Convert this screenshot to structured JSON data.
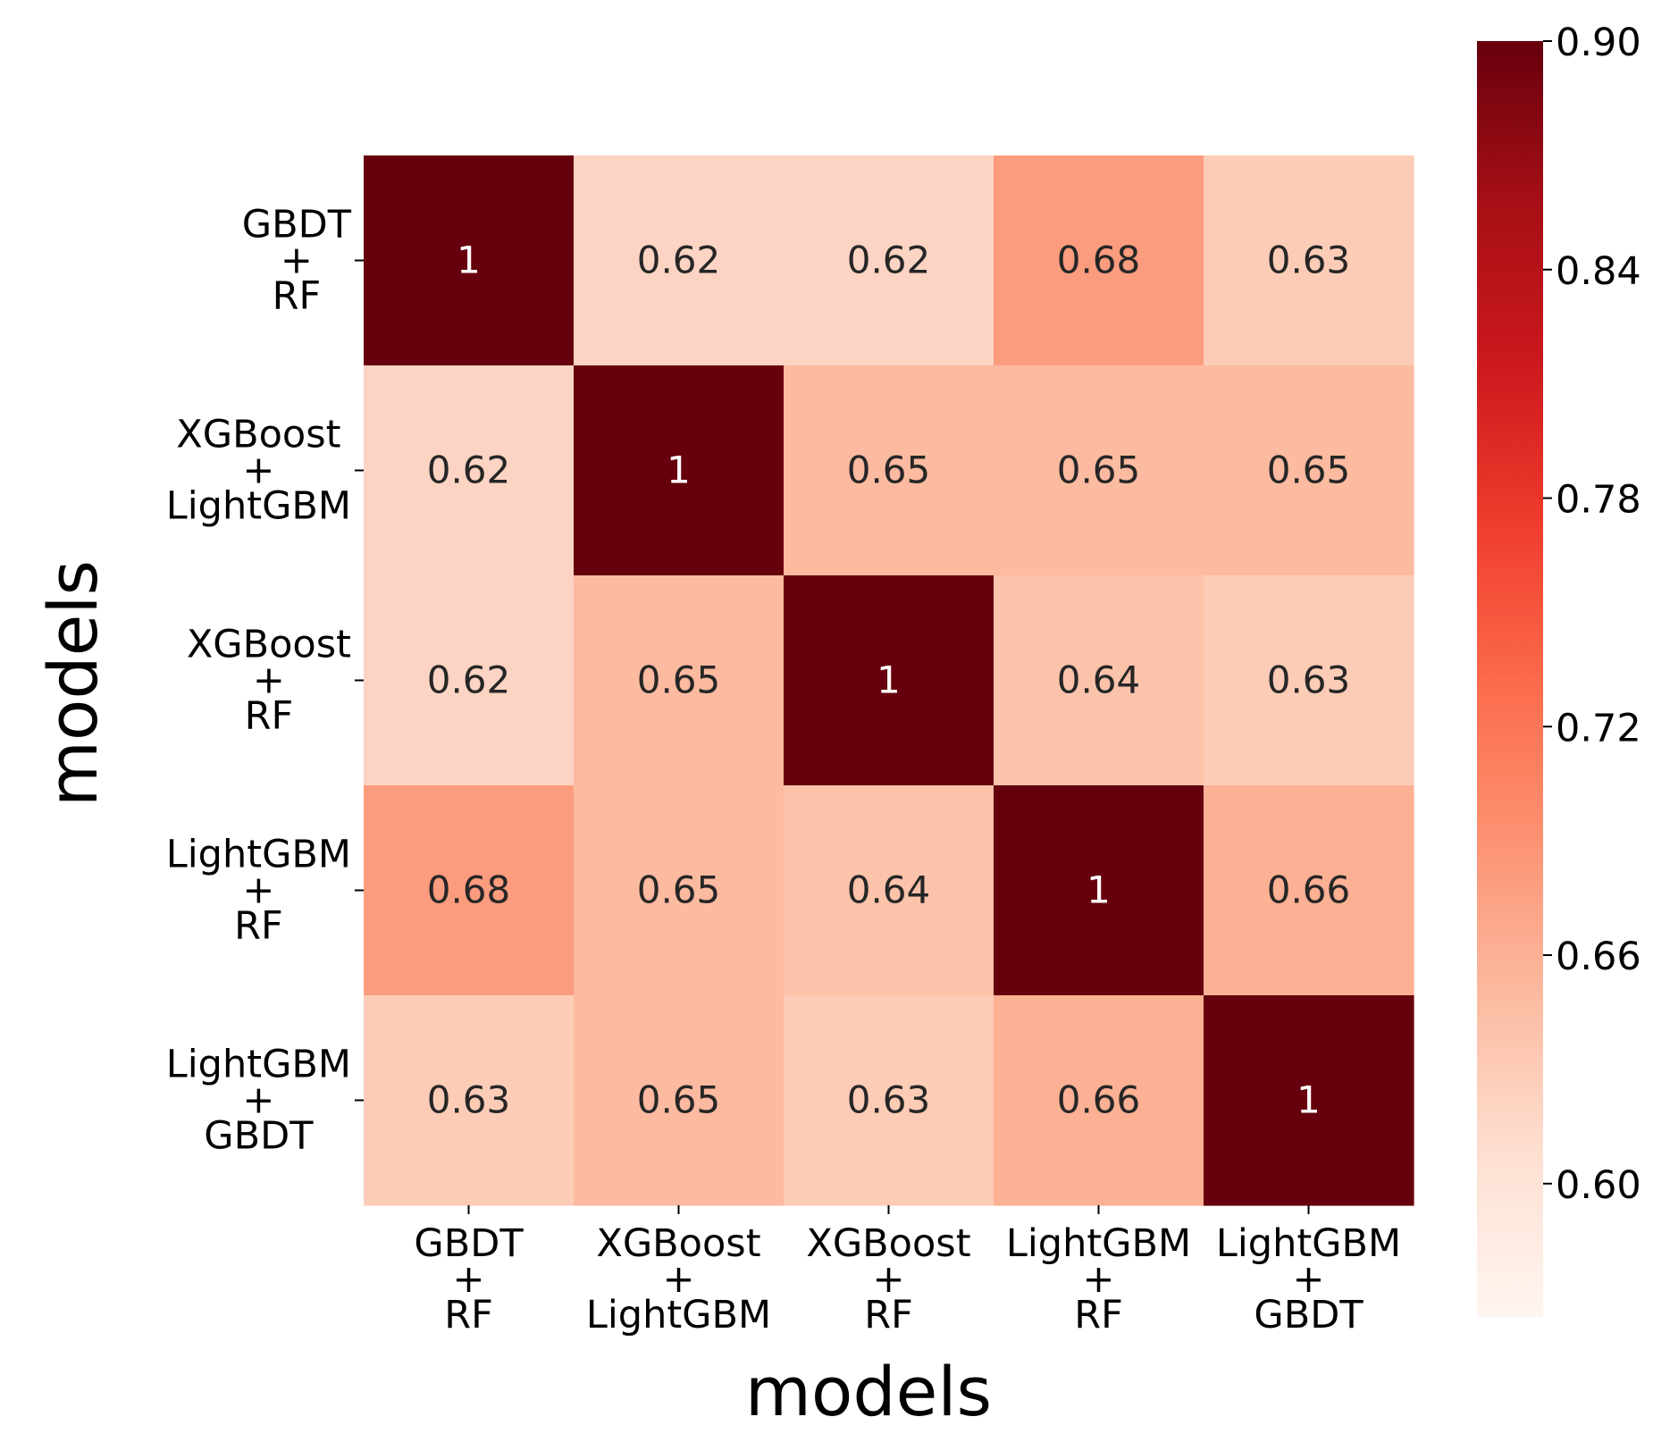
{
  "chart_data": {
    "type": "heatmap",
    "title": "",
    "xlabel": "models",
    "ylabel": "models",
    "categories": [
      [
        "GBDT",
        "+",
        "RF"
      ],
      [
        "XGBoost",
        "+",
        "LightGBM"
      ],
      [
        "XGBoost",
        "+",
        "RF"
      ],
      [
        "LightGBM",
        "+",
        "RF"
      ],
      [
        "LightGBM",
        "+",
        "GBDT"
      ]
    ],
    "values": [
      [
        1,
        0.62,
        0.62,
        0.68,
        0.63
      ],
      [
        0.62,
        1,
        0.65,
        0.65,
        0.65
      ],
      [
        0.62,
        0.65,
        1,
        0.64,
        0.63
      ],
      [
        0.68,
        0.65,
        0.64,
        1,
        0.66
      ],
      [
        0.63,
        0.65,
        0.63,
        0.66,
        1
      ]
    ],
    "cell_labels": [
      [
        "1",
        "0.62",
        "0.62",
        "0.68",
        "0.63"
      ],
      [
        "0.62",
        "1",
        "0.65",
        "0.65",
        "0.65"
      ],
      [
        "0.62",
        "0.65",
        "1",
        "0.64",
        "0.63"
      ],
      [
        "0.68",
        "0.65",
        "0.64",
        "1",
        "0.66"
      ],
      [
        "0.63",
        "0.65",
        "0.63",
        "0.66",
        "1"
      ]
    ],
    "colorbar": {
      "range": [
        0.565,
        0.9
      ],
      "ticks": [
        0.6,
        0.66,
        0.72,
        0.78,
        0.84,
        0.9
      ],
      "tick_labels": [
        "0.60",
        "0.66",
        "0.72",
        "0.78",
        "0.84",
        "0.90"
      ],
      "colormap": "Reds",
      "placement": "right"
    },
    "grid": false,
    "colors": {
      "stops": [
        "#fff5f0",
        "#fee0d2",
        "#fcbba1",
        "#fc9272",
        "#fb6a4a",
        "#ef3b2c",
        "#cb181d",
        "#a50f15",
        "#67000d"
      ],
      "text_light": "#ffffff",
      "text_dark": "#262626",
      "axis": "#000000"
    }
  }
}
